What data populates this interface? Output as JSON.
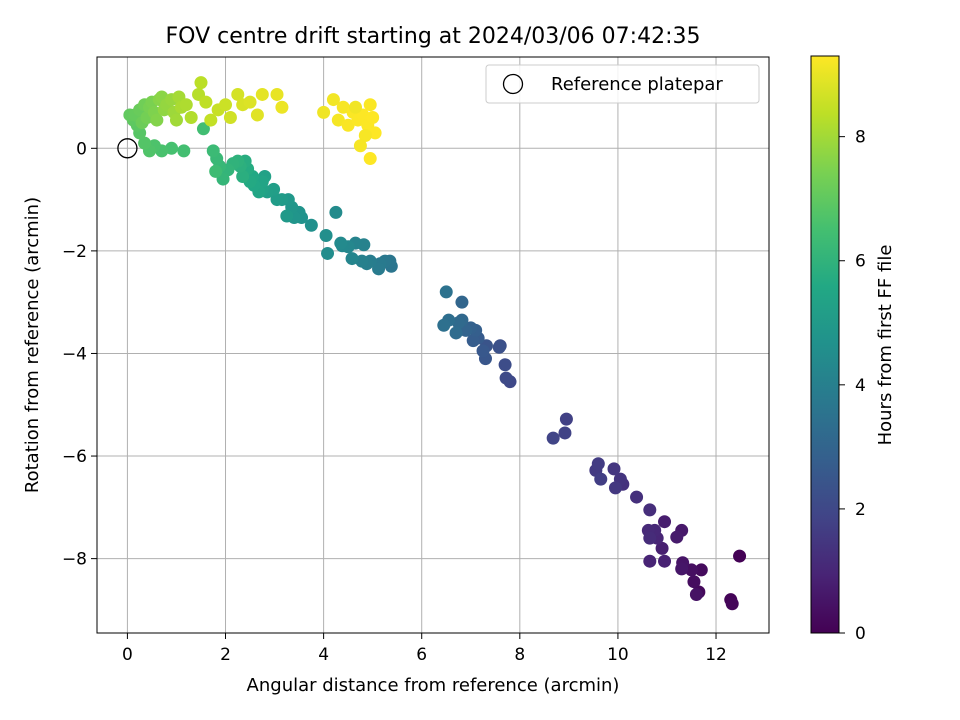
{
  "chart_data": {
    "type": "scatter",
    "title": "FOV centre drift starting at 2024/03/06 07:42:35",
    "xlabel": "Angular distance from reference (arcmin)",
    "ylabel": "Rotation from reference (arcmin)",
    "xlim": [
      -0.62,
      13.08
    ],
    "ylim": [
      -9.45,
      1.78
    ],
    "xticks": [
      0,
      2,
      4,
      6,
      8,
      10,
      12
    ],
    "yticks": [
      -8,
      -6,
      -4,
      -2,
      0
    ],
    "grid": true,
    "legend": {
      "position": "top-right",
      "entries": [
        "Reference platepar"
      ]
    },
    "reference_point": {
      "x": 0,
      "y": 0
    },
    "colorbar": {
      "label": "Hours from first FF file",
      "range": [
        0,
        9.3
      ],
      "ticks": [
        0,
        2,
        4,
        6,
        8
      ],
      "colormap": "viridis"
    },
    "points": [
      [
        12.48,
        -7.95,
        0.02
      ],
      [
        12.3,
        -8.8,
        0.08
      ],
      [
        12.33,
        -8.88,
        0.14
      ],
      [
        11.65,
        -8.65,
        0.2
      ],
      [
        11.7,
        -8.22,
        0.26
      ],
      [
        11.55,
        -8.45,
        0.32
      ],
      [
        11.5,
        -8.22,
        0.38
      ],
      [
        11.6,
        -8.7,
        0.44
      ],
      [
        11.32,
        -8.08,
        0.5
      ],
      [
        11.3,
        -8.2,
        0.56
      ],
      [
        11.3,
        -7.45,
        0.62
      ],
      [
        11.2,
        -7.58,
        0.68
      ],
      [
        10.95,
        -7.28,
        0.74
      ],
      [
        10.9,
        -7.8,
        0.8
      ],
      [
        10.95,
        -8.05,
        0.86
      ],
      [
        10.65,
        -8.05,
        0.92
      ],
      [
        10.8,
        -7.6,
        0.98
      ],
      [
        10.75,
        -7.45,
        1.04
      ],
      [
        10.62,
        -7.45,
        1.1
      ],
      [
        10.65,
        -7.6,
        1.16
      ],
      [
        10.65,
        -7.05,
        1.22
      ],
      [
        10.38,
        -6.8,
        1.28
      ],
      [
        10.1,
        -6.55,
        1.34
      ],
      [
        10.05,
        -6.45,
        1.4
      ],
      [
        9.92,
        -6.25,
        1.46
      ],
      [
        9.95,
        -6.62,
        1.52
      ],
      [
        9.55,
        -6.28,
        1.58
      ],
      [
        9.6,
        -6.15,
        1.64
      ],
      [
        9.65,
        -6.45,
        1.7
      ],
      [
        8.95,
        -5.28,
        1.76
      ],
      [
        8.92,
        -5.55,
        1.82
      ],
      [
        8.68,
        -5.65,
        1.88
      ],
      [
        7.8,
        -4.55,
        2.0
      ],
      [
        7.72,
        -4.48,
        2.08
      ],
      [
        7.7,
        -4.22,
        2.16
      ],
      [
        7.6,
        -3.85,
        2.24
      ],
      [
        7.58,
        -3.88,
        2.32
      ],
      [
        7.32,
        -3.85,
        2.4
      ],
      [
        7.3,
        -4.1,
        2.48
      ],
      [
        7.25,
        -3.95,
        2.56
      ],
      [
        7.15,
        -3.7,
        2.64
      ],
      [
        7.05,
        -3.75,
        2.72
      ],
      [
        7.1,
        -3.55,
        2.8
      ],
      [
        7.0,
        -3.5,
        2.88
      ],
      [
        6.9,
        -3.55,
        2.96
      ],
      [
        6.82,
        -3.0,
        3.04
      ],
      [
        6.82,
        -3.35,
        3.12
      ],
      [
        6.75,
        -3.4,
        3.2
      ],
      [
        6.7,
        -3.6,
        3.28
      ],
      [
        6.55,
        -3.35,
        3.36
      ],
      [
        6.45,
        -3.45,
        3.42
      ],
      [
        6.5,
        -2.8,
        3.5
      ],
      [
        5.38,
        -2.3,
        3.6
      ],
      [
        5.35,
        -2.2,
        3.66
      ],
      [
        5.25,
        -2.2,
        3.72
      ],
      [
        5.15,
        -2.25,
        3.78
      ],
      [
        5.12,
        -2.35,
        3.84
      ],
      [
        4.95,
        -2.2,
        3.9
      ],
      [
        4.88,
        -2.25,
        3.96
      ],
      [
        4.78,
        -2.2,
        4.02
      ],
      [
        4.82,
        -1.88,
        4.08
      ],
      [
        4.65,
        -1.85,
        4.14
      ],
      [
        4.58,
        -2.15,
        4.2
      ],
      [
        4.5,
        -1.92,
        4.26
      ],
      [
        4.38,
        -1.9,
        4.32
      ],
      [
        4.35,
        -1.85,
        4.38
      ],
      [
        4.25,
        -1.25,
        4.44
      ],
      [
        4.08,
        -2.05,
        4.5
      ],
      [
        4.05,
        -1.7,
        4.56
      ],
      [
        3.75,
        -1.5,
        4.62
      ],
      [
        3.55,
        -1.35,
        4.68
      ],
      [
        3.5,
        -1.25,
        4.74
      ],
      [
        3.4,
        -1.35,
        4.8
      ],
      [
        3.35,
        -1.15,
        4.86
      ],
      [
        3.28,
        -1.0,
        4.92
      ],
      [
        3.25,
        -1.32,
        4.98
      ],
      [
        3.15,
        -1.0,
        5.04
      ],
      [
        3.05,
        -1.0,
        5.1
      ],
      [
        2.98,
        -0.8,
        5.16
      ],
      [
        2.85,
        -0.85,
        5.22
      ],
      [
        2.8,
        -0.55,
        5.28
      ],
      [
        2.75,
        -0.8,
        5.34
      ],
      [
        2.75,
        -0.65,
        5.4
      ],
      [
        2.68,
        -0.85,
        5.46
      ],
      [
        2.58,
        -0.72,
        5.52
      ],
      [
        2.55,
        -0.55,
        5.58
      ],
      [
        2.5,
        -0.65,
        5.64
      ],
      [
        2.45,
        -0.4,
        5.7
      ],
      [
        2.4,
        -0.25,
        5.76
      ],
      [
        2.35,
        -0.55,
        5.82
      ],
      [
        2.3,
        -0.35,
        5.88
      ],
      [
        2.25,
        -0.25,
        5.94
      ],
      [
        2.15,
        -0.3,
        6.0
      ],
      [
        2.05,
        -0.42,
        6.06
      ],
      [
        1.95,
        -0.6,
        6.12
      ],
      [
        1.88,
        -0.35,
        6.18
      ],
      [
        1.82,
        -0.2,
        6.24
      ],
      [
        1.75,
        -0.05,
        6.3
      ],
      [
        1.8,
        -0.45,
        6.36
      ],
      [
        1.55,
        0.38,
        6.42
      ],
      [
        1.15,
        -0.05,
        6.48
      ],
      [
        0.9,
        0.0,
        6.54
      ],
      [
        0.7,
        -0.05,
        6.6
      ],
      [
        0.55,
        0.05,
        6.66
      ],
      [
        0.45,
        -0.05,
        6.72
      ],
      [
        0.35,
        0.1,
        6.78
      ],
      [
        0.25,
        0.3,
        6.84
      ],
      [
        0.2,
        0.45,
        6.9
      ],
      [
        0.12,
        0.55,
        6.96
      ],
      [
        0.05,
        0.65,
        7.02
      ],
      [
        0.15,
        0.65,
        7.08
      ],
      [
        0.25,
        0.75,
        7.14
      ],
      [
        0.3,
        0.5,
        7.2
      ],
      [
        0.35,
        0.85,
        7.26
      ],
      [
        0.4,
        0.6,
        7.32
      ],
      [
        0.45,
        0.8,
        7.38
      ],
      [
        0.5,
        0.9,
        7.44
      ],
      [
        0.55,
        0.7,
        7.5
      ],
      [
        0.6,
        0.55,
        7.56
      ],
      [
        0.65,
        0.95,
        7.62
      ],
      [
        0.7,
        1.0,
        7.68
      ],
      [
        0.75,
        0.75,
        7.74
      ],
      [
        0.8,
        0.85,
        7.8
      ],
      [
        0.9,
        0.95,
        7.86
      ],
      [
        0.95,
        0.7,
        7.92
      ],
      [
        1.0,
        0.55,
        7.98
      ],
      [
        1.05,
        1.0,
        8.04
      ],
      [
        1.1,
        0.8,
        8.1
      ],
      [
        1.2,
        0.85,
        8.16
      ],
      [
        1.3,
        0.6,
        8.22
      ],
      [
        1.45,
        1.05,
        8.28
      ],
      [
        1.5,
        1.28,
        8.34
      ],
      [
        1.6,
        0.9,
        8.4
      ],
      [
        1.7,
        0.55,
        8.46
      ],
      [
        1.85,
        0.75,
        8.52
      ],
      [
        2.0,
        0.85,
        8.58
      ],
      [
        2.1,
        0.6,
        8.64
      ],
      [
        2.25,
        1.05,
        8.7
      ],
      [
        2.35,
        0.85,
        8.76
      ],
      [
        2.5,
        0.9,
        8.82
      ],
      [
        2.65,
        0.65,
        8.88
      ],
      [
        2.75,
        1.05,
        8.94
      ],
      [
        3.05,
        1.05,
        9.0
      ],
      [
        3.15,
        0.8,
        9.06
      ],
      [
        4.0,
        0.7,
        9.1
      ],
      [
        4.2,
        0.95,
        9.14
      ],
      [
        4.3,
        0.55,
        9.18
      ],
      [
        4.4,
        0.8,
        9.21
      ],
      [
        4.5,
        0.45,
        9.24
      ],
      [
        4.6,
        0.7,
        9.26
      ],
      [
        4.7,
        0.55,
        9.27
      ],
      [
        4.8,
        0.65,
        9.28
      ],
      [
        4.9,
        0.45,
        9.29
      ],
      [
        5.0,
        0.6,
        9.3
      ],
      [
        5.05,
        0.3,
        9.3
      ],
      [
        4.95,
        0.85,
        9.25
      ],
      [
        4.85,
        0.25,
        9.22
      ],
      [
        4.75,
        0.05,
        9.2
      ],
      [
        4.95,
        -0.2,
        9.3
      ],
      [
        4.65,
        0.8,
        9.12
      ]
    ]
  }
}
